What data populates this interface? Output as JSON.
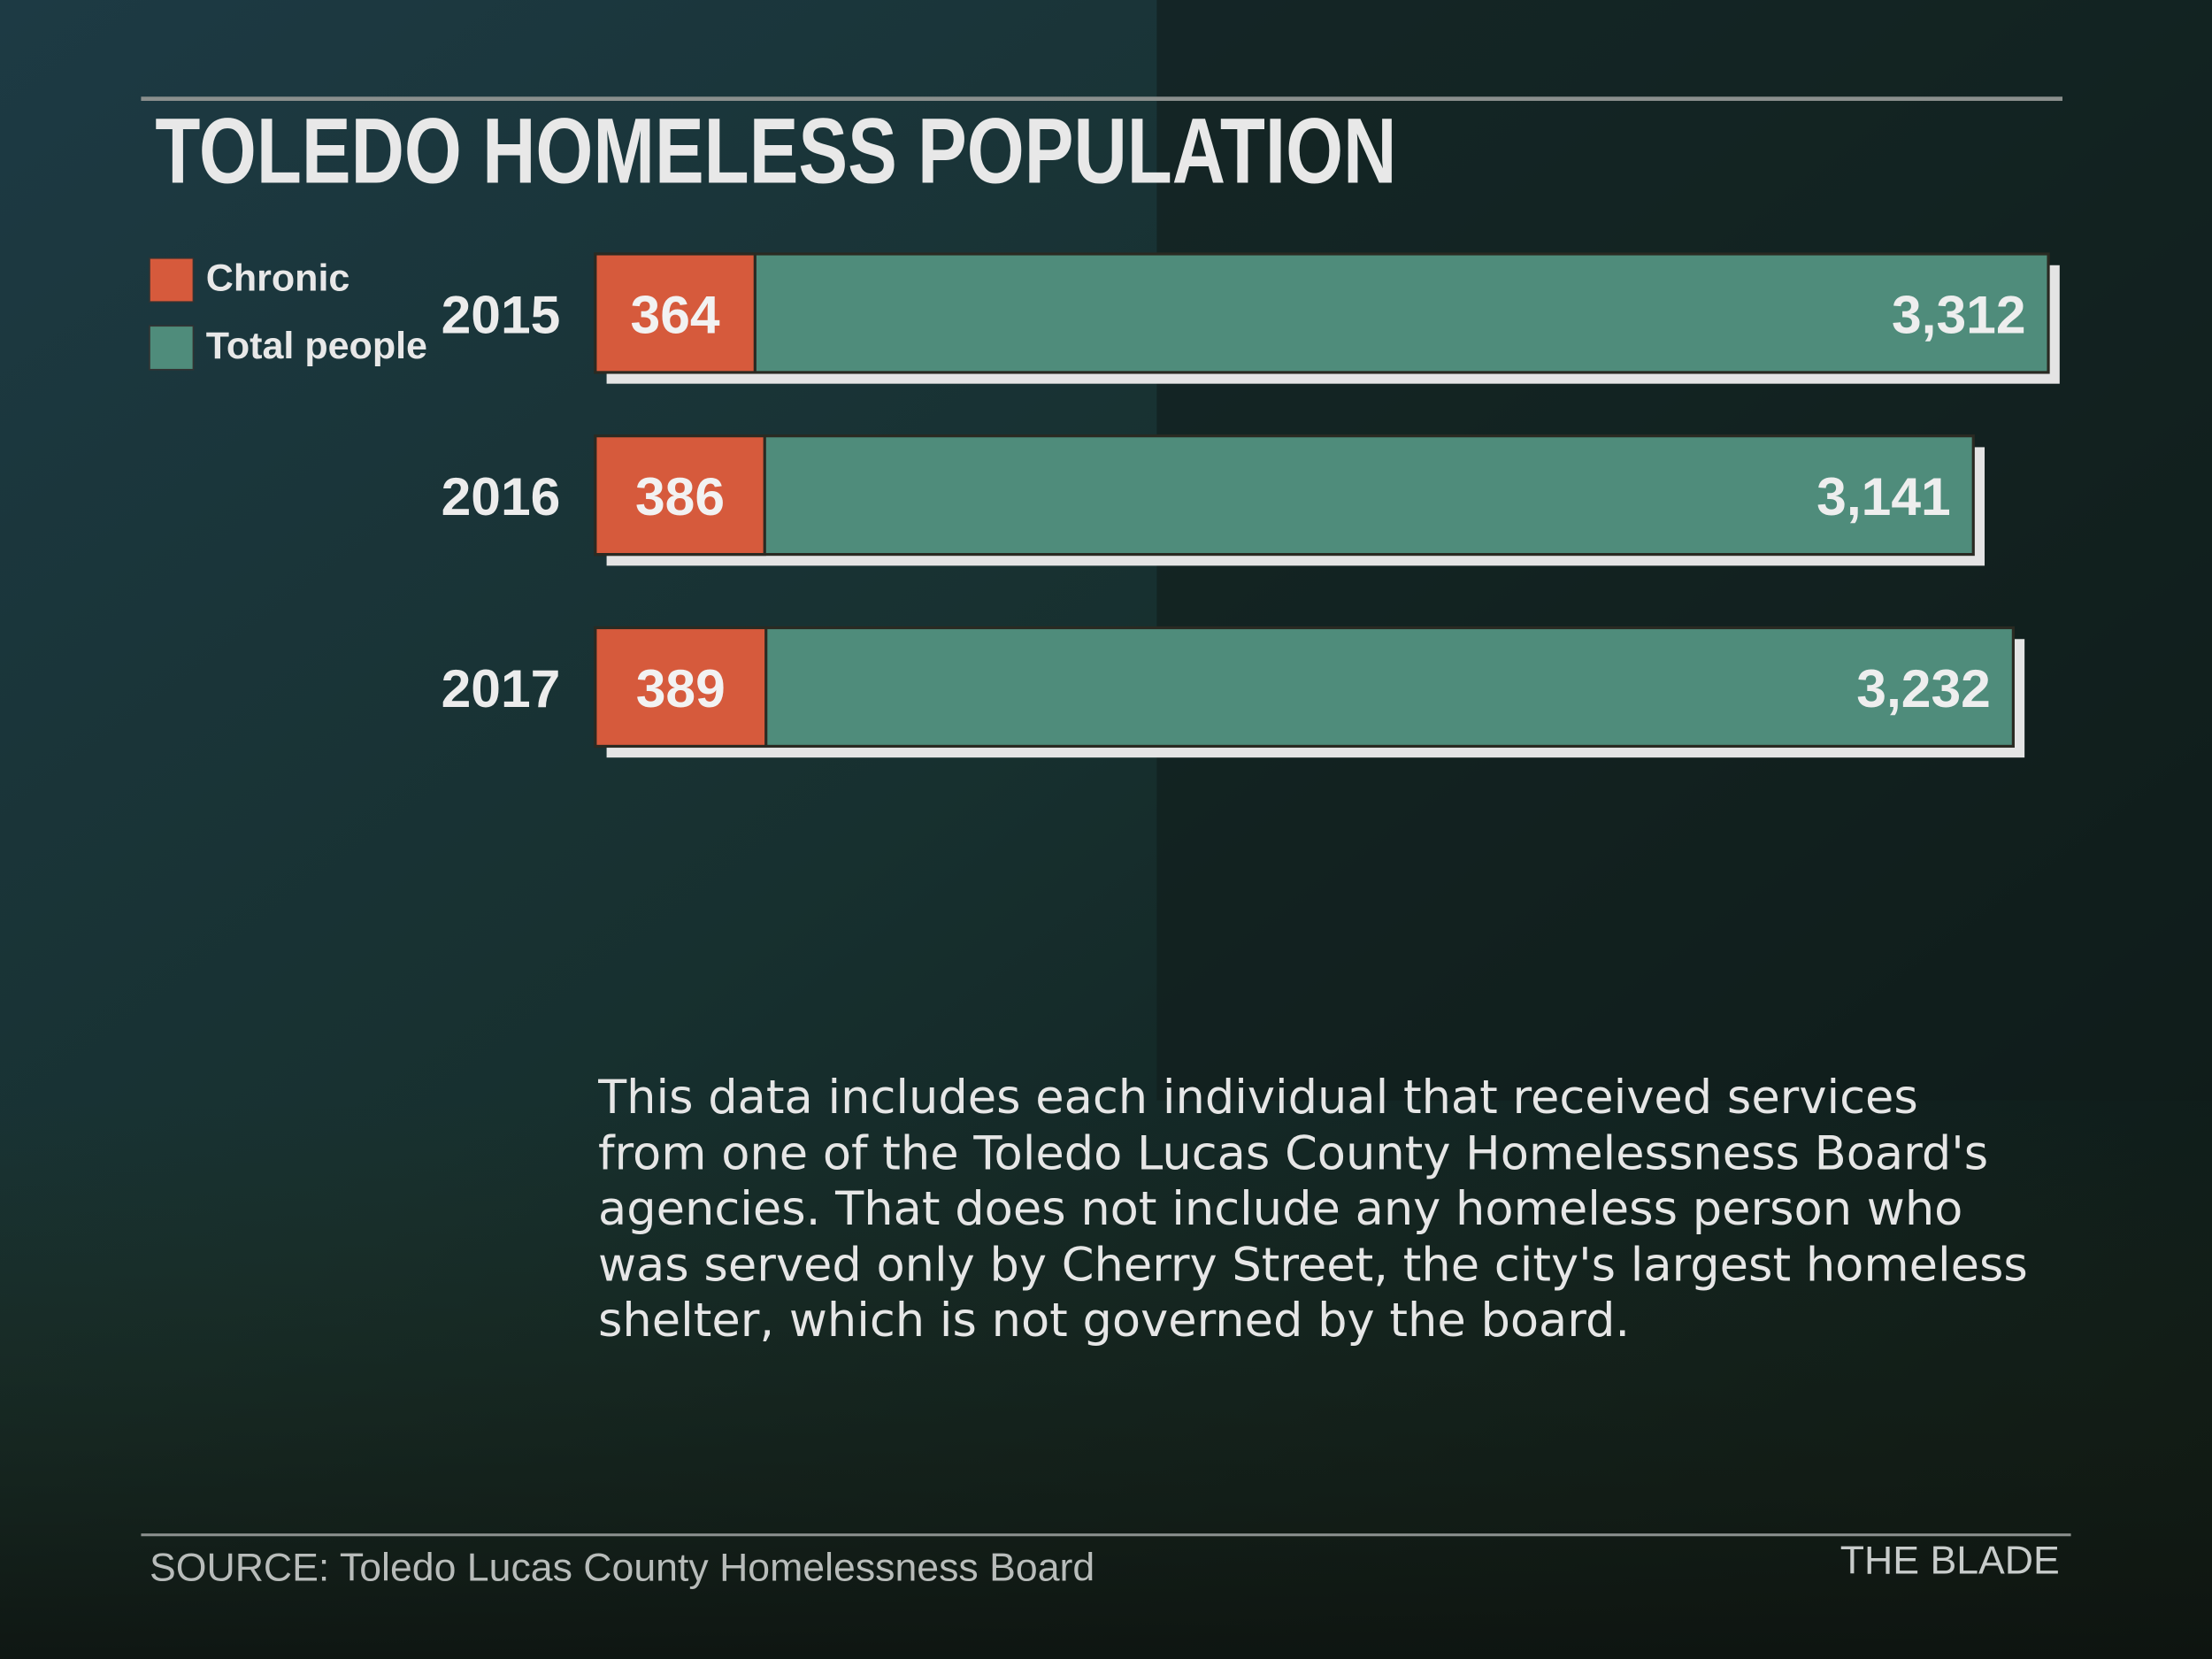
{
  "chart_data": {
    "type": "bar",
    "orientation": "horizontal",
    "title": "TOLEDO HOMELESS POPULATION",
    "categories": [
      "2015",
      "2016",
      "2017"
    ],
    "series": [
      {
        "name": "Chronic",
        "color": "#d65a3c",
        "values": [
          364,
          386,
          389
        ]
      },
      {
        "name": "Total people",
        "color": "#4f8c7b",
        "values": [
          3312,
          3141,
          3232
        ],
        "value_labels": [
          "3,312",
          "3,141",
          "3,232"
        ]
      }
    ],
    "note": "This data includes each individual that received services from one of the Toledo Lucas County Homelessness Board's agencies. That does not include any homeless person who was served only by Cherry Street, the city's largest homeless shelter, which is not governed by the board.",
    "source": "SOURCE: Toledo Lucas County Homelessness Board",
    "credit": "THE BLADE"
  }
}
